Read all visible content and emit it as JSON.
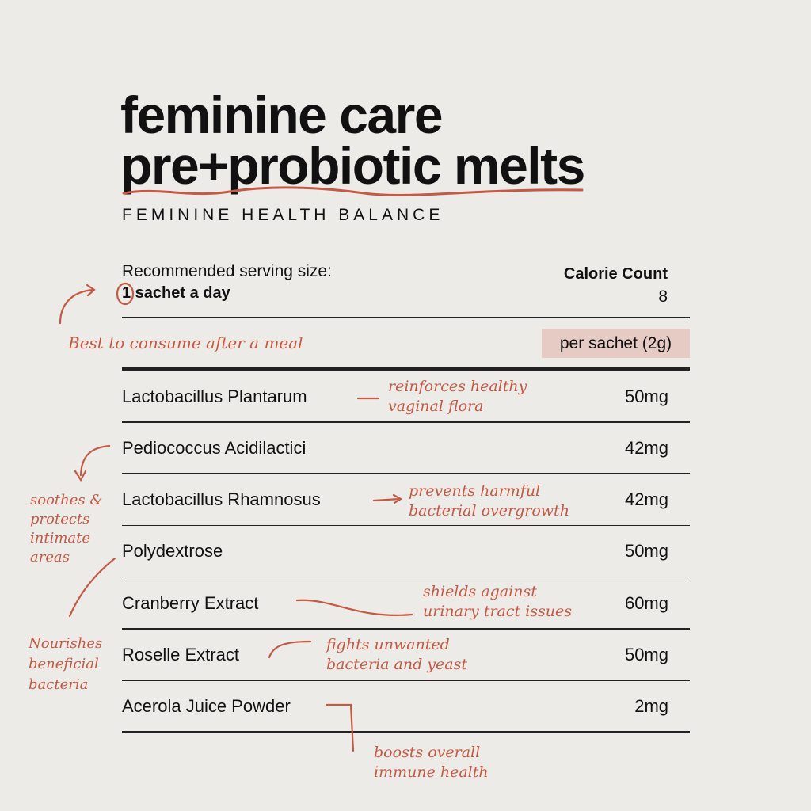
{
  "title": {
    "line1": "feminine care",
    "line2": "pre+probiotic melts",
    "subtitle": "FEMININE HEALTH BALANCE"
  },
  "serving": {
    "label": "Recommended serving size:",
    "value": "1 sachet a day",
    "calorie_label": "Calorie Count",
    "calorie_value": "8",
    "basis": "per sachet (2g)"
  },
  "ingredients": [
    {
      "name": "Lactobacillus Plantarum",
      "amount": "50mg"
    },
    {
      "name": "Pediococcus Acidilactici",
      "amount": "42mg"
    },
    {
      "name": "Lactobacillus Rhamnosus",
      "amount": "42mg"
    },
    {
      "name": "Polydextrose",
      "amount": "50mg"
    },
    {
      "name": "Cranberry Extract",
      "amount": "60mg"
    },
    {
      "name": "Roselle Extract",
      "amount": "50mg"
    },
    {
      "name": "Acerola Juice Powder",
      "amount": "2mg"
    }
  ],
  "notes": {
    "meal": "Best to consume after a meal",
    "plantarum": "reinforces healthy\nvaginal flora",
    "soothes": "soothes &\nprotects\nintimate\nareas",
    "rhamnosus": "prevents harmful\nbacterial overgrowth",
    "nourishes": "Nourishes\nbeneficial\nbacteria",
    "cranberry": "shields against\nurinary tract issues",
    "roselle": "fights unwanted\nbacteria and yeast",
    "acerola": "boosts overall\nimmune health"
  },
  "colors": {
    "accent": "#c45a44",
    "background": "#ecebe8",
    "highlight": "#e6cbc5"
  }
}
